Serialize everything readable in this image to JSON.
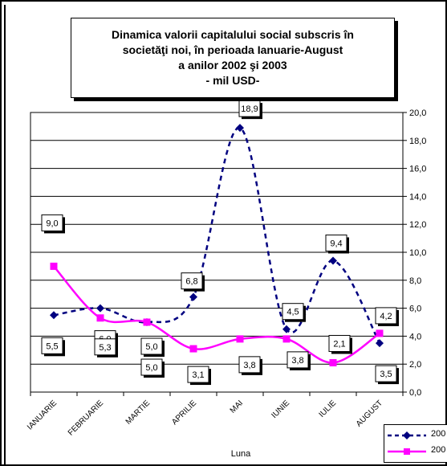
{
  "chart_data": {
    "type": "line",
    "title": "Dinamica  valorii capitalului social subscris în\nsocietăţi noi,  în perioada Ianuarie-August\na anilor 2002 şi 2003\n- mil  USD-",
    "xlabel": "Luna",
    "ylabel": "",
    "categories": [
      "IANUARIE",
      "FEBRUARIE",
      "MARTIE",
      "APRILIE",
      "MAI",
      "IUNIE",
      "IULIE",
      "AUGUST"
    ],
    "ylim": [
      0,
      20
    ],
    "ytick_labels": [
      "0,0",
      "2,0",
      "4,0",
      "6,0",
      "8,0",
      "10,0",
      "12,0",
      "14,0",
      "16,0",
      "18,0",
      "20,0"
    ],
    "grid": "horizontal",
    "legend_position": "bottom-right",
    "series": [
      {
        "name": "200",
        "color": "#000080",
        "style": "dashed",
        "marker": "diamond",
        "values": [
          5.5,
          6.0,
          5.0,
          6.8,
          18.9,
          4.5,
          9.4,
          3.5
        ],
        "labels": [
          "5,5",
          "6,0",
          "5,0",
          "6,8",
          "18,9",
          "4,5",
          "9,4",
          "3,5"
        ]
      },
      {
        "name": "200",
        "color": "#FF00FF",
        "style": "solid",
        "marker": "square",
        "values": [
          9.0,
          5.3,
          5.0,
          3.1,
          3.8,
          3.8,
          2.1,
          4.2
        ],
        "labels": [
          "9,0",
          "5,3",
          "5,0",
          "3,1",
          "3,8",
          "3,8",
          "2,1",
          "4,2"
        ]
      }
    ]
  }
}
